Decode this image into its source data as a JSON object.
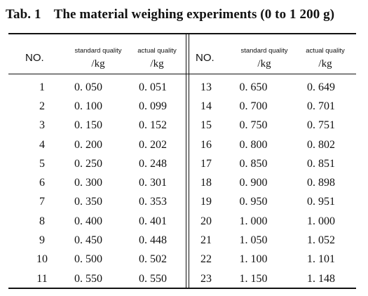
{
  "title": {
    "label": "Tab. 1",
    "text": "The material weighing experiments (0 to 1 200 g)"
  },
  "headers": {
    "no": "NO.",
    "standard": "standard quality",
    "actual": "actual quality",
    "unit": "/kg"
  },
  "rows_left": [
    [
      "1",
      "0. 050",
      "0. 051"
    ],
    [
      "2",
      "0. 100",
      "0. 099"
    ],
    [
      "3",
      "0. 150",
      "0. 152"
    ],
    [
      "4",
      "0. 200",
      "0. 202"
    ],
    [
      "5",
      "0. 250",
      "0. 248"
    ],
    [
      "6",
      "0. 300",
      "0. 301"
    ],
    [
      "7",
      "0. 350",
      "0. 353"
    ],
    [
      "8",
      "0. 400",
      "0. 401"
    ],
    [
      "9",
      "0. 450",
      "0. 448"
    ],
    [
      "10",
      "0. 500",
      "0. 502"
    ],
    [
      "11",
      "0. 550",
      "0. 550"
    ]
  ],
  "rows_right": [
    [
      "13",
      "0. 650",
      "0. 649"
    ],
    [
      "14",
      "0. 700",
      "0. 701"
    ],
    [
      "15",
      "0. 750",
      "0. 751"
    ],
    [
      "16",
      "0. 800",
      "0. 802"
    ],
    [
      "17",
      "0. 850",
      "0. 851"
    ],
    [
      "18",
      "0. 900",
      "0. 898"
    ],
    [
      "19",
      "0. 950",
      "0. 951"
    ],
    [
      "20",
      "1. 000",
      "1. 000"
    ],
    [
      "21",
      "1. 050",
      "1. 052"
    ],
    [
      "22",
      "1. 100",
      "1. 101"
    ],
    [
      "23",
      "1. 150",
      "1. 148"
    ]
  ]
}
